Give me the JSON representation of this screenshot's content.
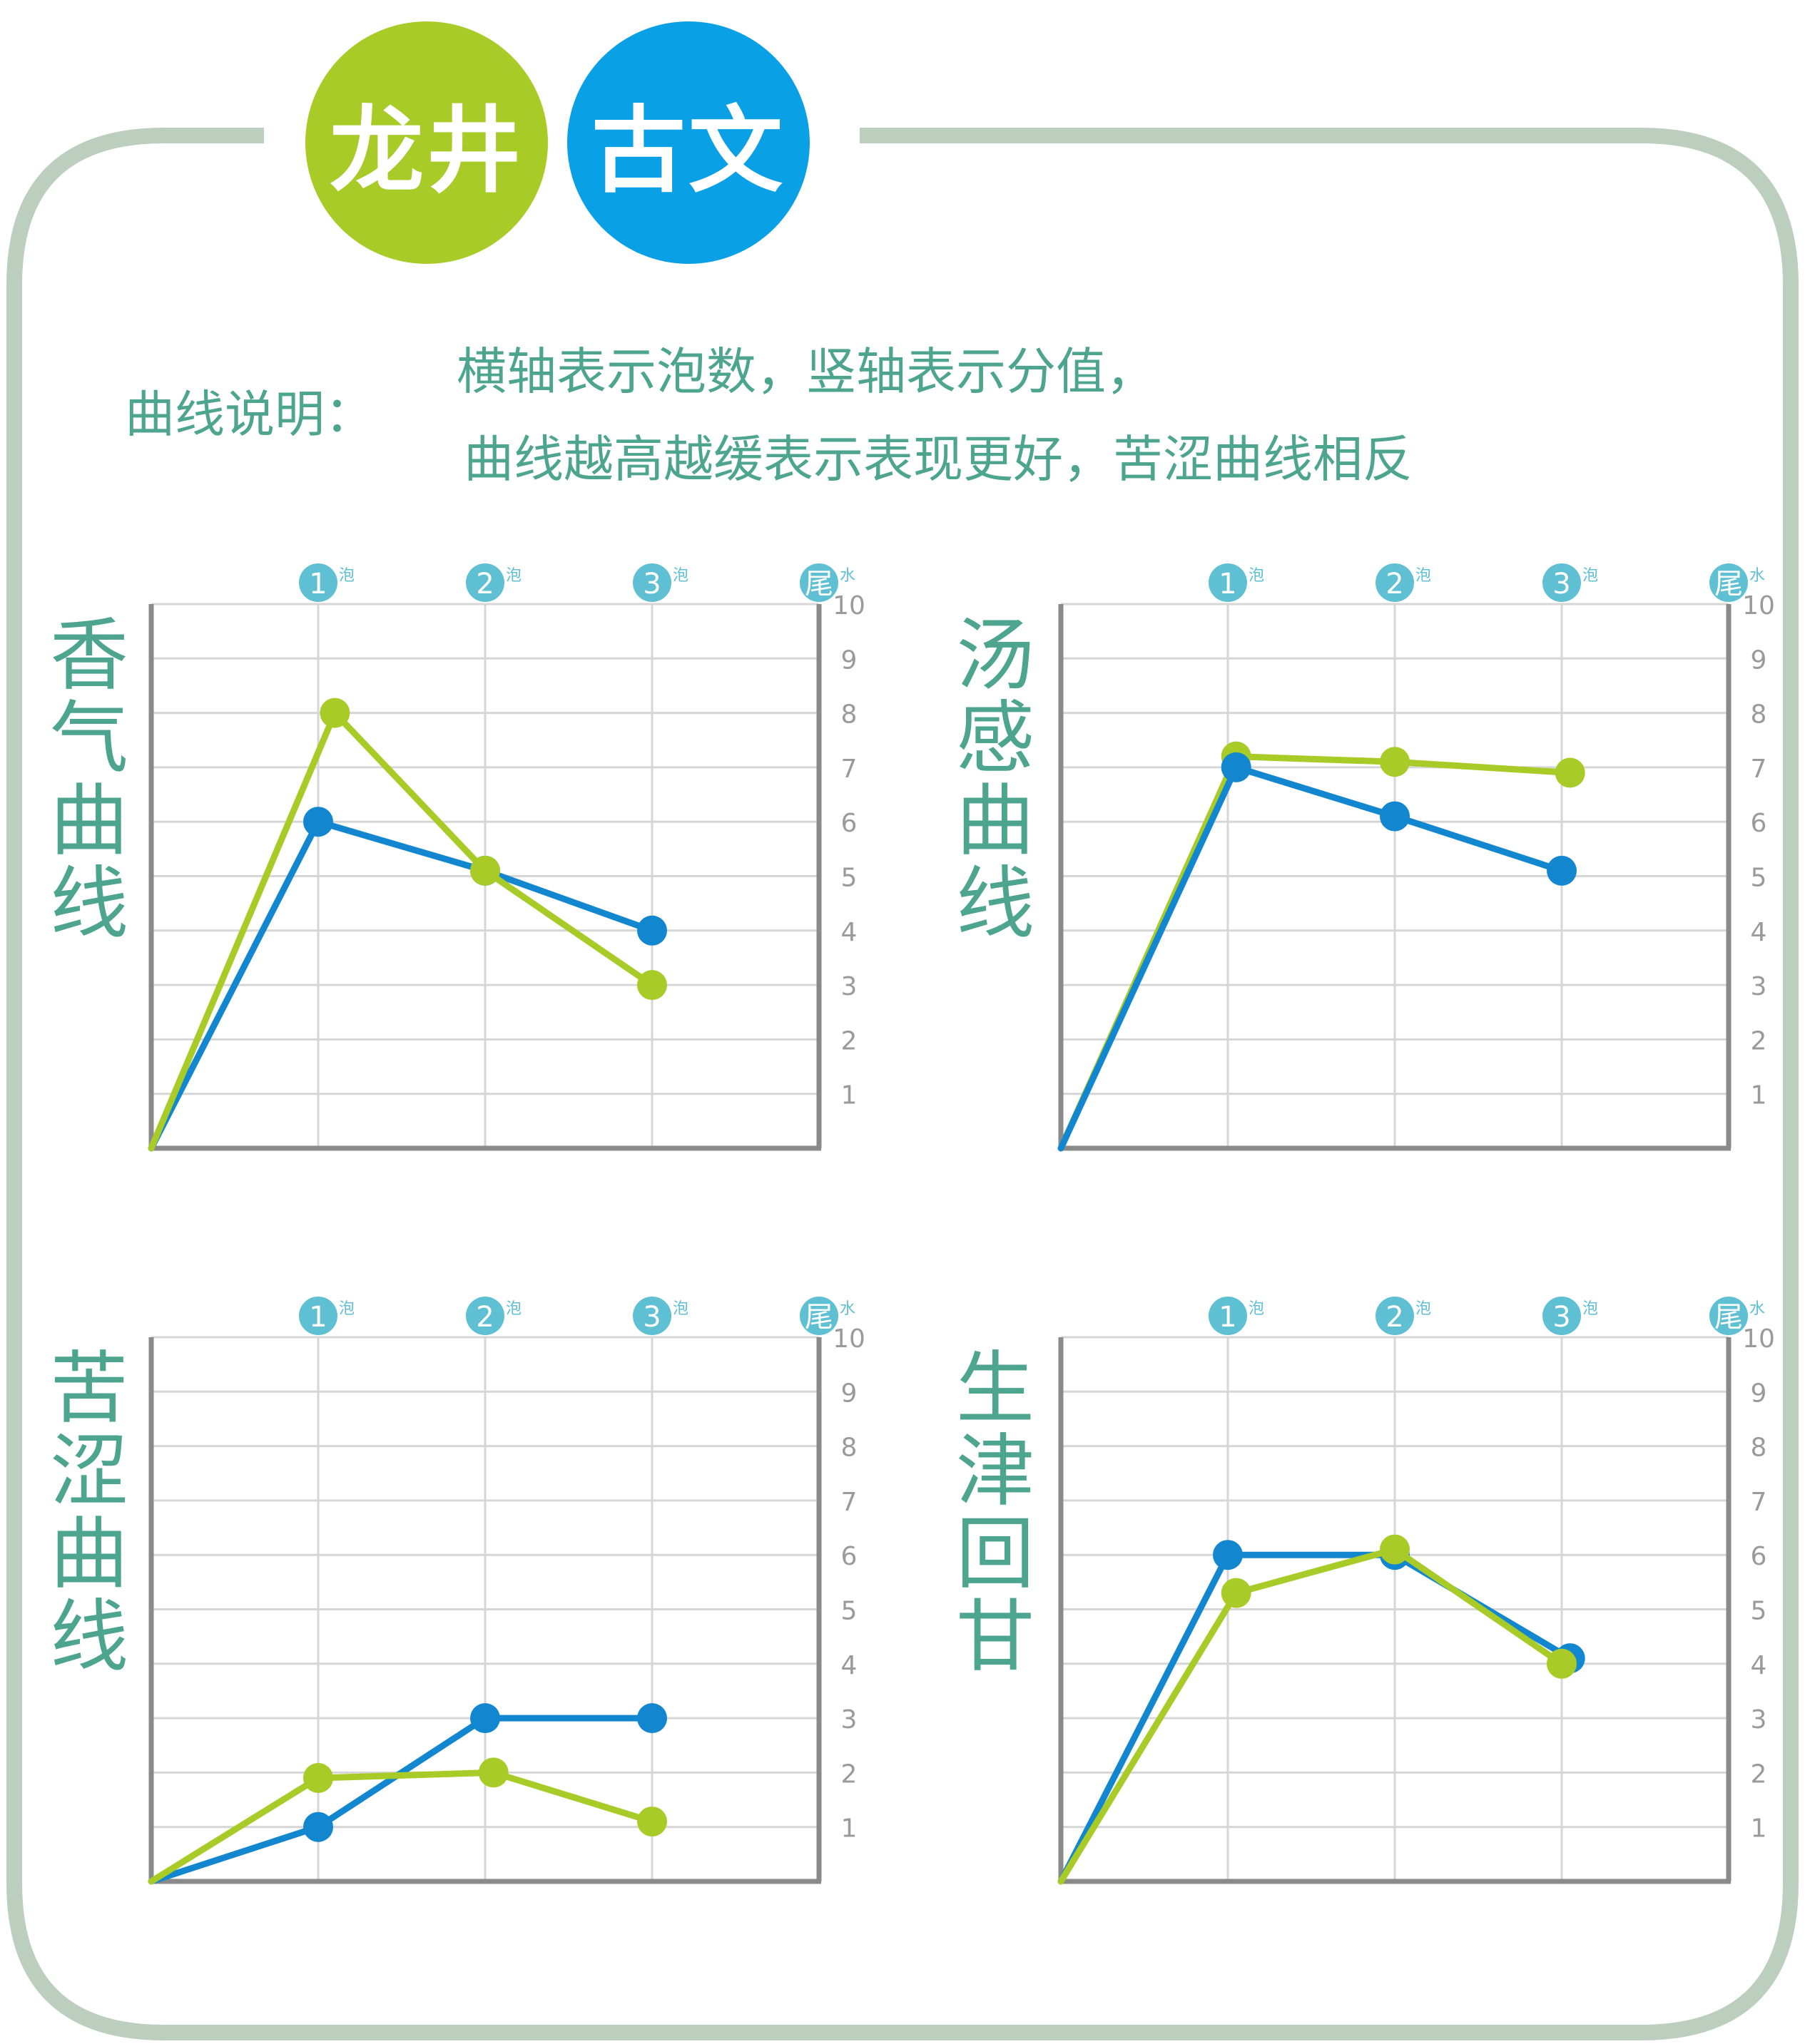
{
  "header": {
    "badges": [
      {
        "label": "龙井",
        "color": "#a8cb28"
      },
      {
        "label": "古文",
        "color": "#0aa0e6"
      }
    ]
  },
  "legend": {
    "title": "曲线说明：",
    "line1": "横轴表示泡数，竖轴表示分值，",
    "line2": "曲线越高越缓表示表现更好，苦涩曲线相反"
  },
  "colors": {
    "frame": "#bccfbe",
    "title_text": "#4ea58f",
    "longjing": "#a8cb28",
    "guwen": "#1287cf",
    "grid": "#d6d6d6",
    "axis": "#8a8a8a",
    "tick_circle": "#5fbfd3",
    "tick_label": "#9a9a9a"
  },
  "chart_data": [
    {
      "type": "line",
      "title": "香气曲线",
      "categories": [
        "",
        "1",
        "2",
        "3",
        "尾"
      ],
      "category_suffixes": [
        "",
        "泡",
        "泡",
        "泡",
        "水"
      ],
      "ylim": [
        0,
        10
      ],
      "y_ticks": [
        1,
        2,
        3,
        4,
        5,
        6,
        7,
        8,
        9,
        10
      ],
      "series": [
        {
          "color": "#1287cf",
          "points": [
            [
              0,
              0
            ],
            [
              1,
              6
            ],
            [
              2,
              5.1
            ],
            [
              3,
              4
            ]
          ]
        },
        {
          "color": "#a8cb28",
          "points": [
            [
              0,
              0
            ],
            [
              1.1,
              8
            ],
            [
              2,
              5.1
            ],
            [
              3,
              3
            ]
          ]
        }
      ]
    },
    {
      "type": "line",
      "title": "汤感曲线",
      "categories": [
        "",
        "1",
        "2",
        "3",
        "尾"
      ],
      "category_suffixes": [
        "",
        "泡",
        "泡",
        "泡",
        "水"
      ],
      "ylim": [
        0,
        10
      ],
      "y_ticks": [
        1,
        2,
        3,
        4,
        5,
        6,
        7,
        8,
        9,
        10
      ],
      "series": [
        {
          "color": "#a8cb28",
          "points": [
            [
              0,
              0
            ],
            [
              1.05,
              7.2
            ],
            [
              2,
              7.1
            ],
            [
              3.05,
              6.9
            ]
          ]
        },
        {
          "color": "#1287cf",
          "points": [
            [
              0,
              0
            ],
            [
              1.05,
              7
            ],
            [
              2,
              6.1
            ],
            [
              3,
              5.1
            ]
          ]
        }
      ]
    },
    {
      "type": "line",
      "title": "苦涩曲线",
      "categories": [
        "",
        "1",
        "2",
        "3",
        "尾"
      ],
      "category_suffixes": [
        "",
        "泡",
        "泡",
        "泡",
        "水"
      ],
      "ylim": [
        0,
        10
      ],
      "y_ticks": [
        1,
        2,
        3,
        4,
        5,
        6,
        7,
        8,
        9,
        10
      ],
      "series": [
        {
          "color": "#1287cf",
          "points": [
            [
              0,
              0
            ],
            [
              1,
              1
            ],
            [
              2,
              3
            ],
            [
              3,
              3
            ]
          ]
        },
        {
          "color": "#a8cb28",
          "points": [
            [
              0,
              0
            ],
            [
              1,
              1.9
            ],
            [
              2.05,
              2
            ],
            [
              3,
              1.1
            ]
          ]
        }
      ]
    },
    {
      "type": "line",
      "title": "生津回甘",
      "categories": [
        "",
        "1",
        "2",
        "3",
        "尾"
      ],
      "category_suffixes": [
        "",
        "泡",
        "泡",
        "泡",
        "水"
      ],
      "ylim": [
        0,
        10
      ],
      "y_ticks": [
        1,
        2,
        3,
        4,
        5,
        6,
        7,
        8,
        9,
        10
      ],
      "series": [
        {
          "color": "#1287cf",
          "points": [
            [
              0,
              0
            ],
            [
              1,
              6
            ],
            [
              2,
              6
            ],
            [
              3.05,
              4.1
            ]
          ]
        },
        {
          "color": "#a8cb28",
          "points": [
            [
              0,
              0
            ],
            [
              1.05,
              5.3
            ],
            [
              2,
              6.1
            ],
            [
              3,
              4
            ]
          ]
        }
      ]
    }
  ]
}
